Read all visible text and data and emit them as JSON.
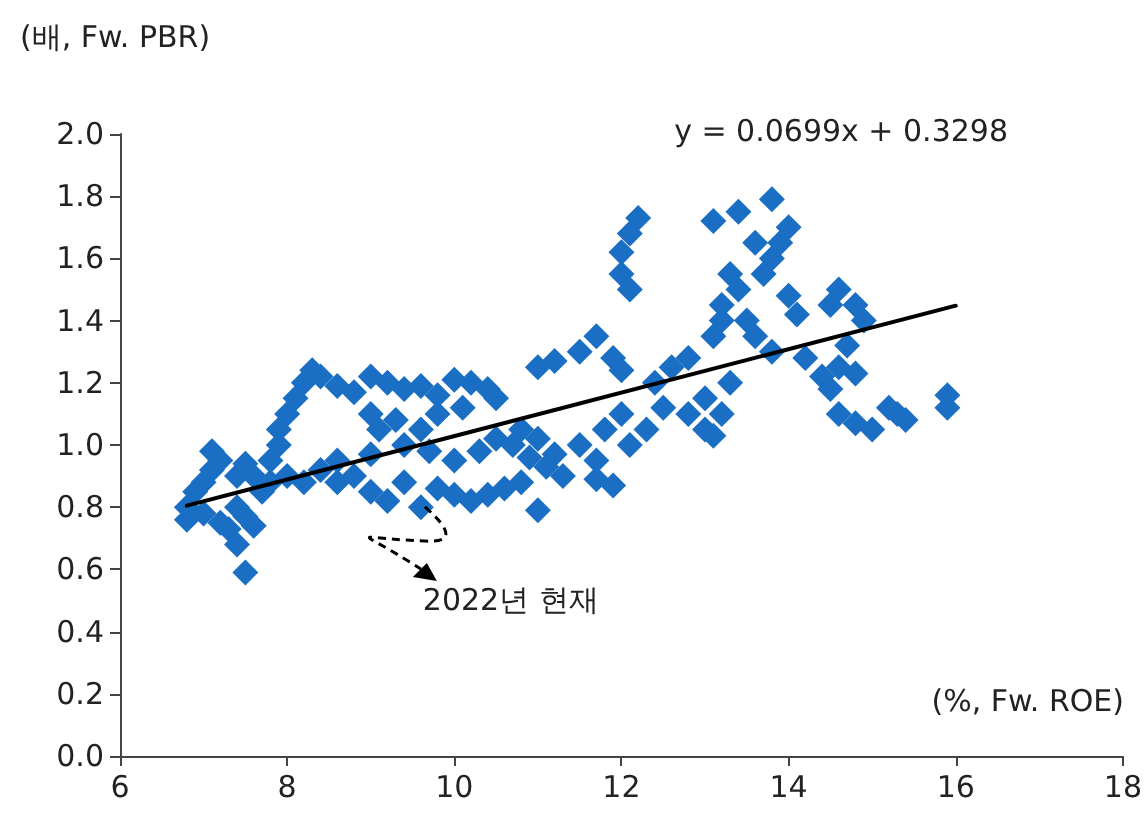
{
  "chart_data": {
    "type": "scatter",
    "xlabel": "(%, Fw. ROE)",
    "ylabel": "(배, Fw. PBR)",
    "annotations": [
      "y = 0.0699x + 0.3298",
      {
        "text": "2022년 현재",
        "x": 9.6,
        "y": 0.82
      }
    ],
    "xlim": [
      6,
      18
    ],
    "xticks": [
      6,
      8,
      10,
      12,
      14,
      16,
      18
    ],
    "ylim": [
      0,
      2
    ],
    "yticks": [
      {
        "value": 0,
        "label": "0.0"
      },
      {
        "value": 0.2,
        "label": "0.2"
      },
      {
        "value": 0.4,
        "label": "0.4"
      },
      {
        "value": 0.6,
        "label": "0.6"
      },
      {
        "value": 0.8,
        "label": "0.8"
      },
      {
        "value": 1,
        "label": "1.0"
      },
      {
        "value": 1.2,
        "label": "1.2"
      },
      {
        "value": 1.4,
        "label": "1.4"
      },
      {
        "value": 1.6,
        "label": "1.6"
      },
      {
        "value": 1.8,
        "label": "1.8"
      },
      {
        "value": 2,
        "label": "2.0"
      }
    ],
    "grid": false,
    "marker": "diamond",
    "series": [
      {
        "color": "#1a6fc4",
        "x": [
          6.8,
          6.8,
          6.9,
          7.0,
          7.1,
          7.1,
          7.2,
          7.0,
          7.2,
          7.3,
          7.4,
          7.5,
          7.4,
          7.5,
          7.6,
          7.4,
          7.5,
          7.6,
          7.7,
          7.8,
          7.8,
          7.9,
          7.9,
          8.0,
          8.1,
          8.2,
          8.3,
          8.4,
          8.6,
          8.8,
          9.0,
          9.2,
          9.4,
          9.6,
          9.8,
          10.0,
          10.2,
          10.4,
          10.5,
          9.0,
          9.1,
          9.3,
          9.6,
          9.8,
          10.1,
          8.0,
          8.2,
          8.4,
          8.6,
          8.8,
          9.0,
          9.2,
          9.4,
          9.6,
          9.8,
          10.0,
          10.2,
          10.4,
          10.6,
          10.8,
          11.0,
          8.6,
          9.0,
          9.4,
          9.7,
          10.0,
          10.3,
          10.5,
          10.7,
          10.9,
          11.1,
          11.3,
          10.8,
          11.0,
          11.2,
          11.0,
          11.2,
          11.5,
          11.7,
          11.5,
          11.7,
          11.7,
          11.9,
          11.8,
          12.0,
          12.1,
          12.3,
          11.9,
          12.0,
          12.0,
          12.0,
          12.1,
          12.1,
          12.2,
          12.4,
          12.6,
          12.8,
          12.5,
          12.8,
          13.0,
          13.0,
          13.1,
          13.2,
          13.3,
          13.1,
          13.2,
          13.3,
          13.2,
          13.4,
          13.5,
          13.6,
          13.1,
          13.4,
          13.6,
          13.8,
          13.8,
          14.0,
          13.9,
          13.7,
          13.8,
          14.0,
          14.1,
          14.2,
          14.4,
          14.5,
          14.6,
          14.8,
          14.9,
          14.7,
          14.6,
          14.8,
          14.5,
          14.6,
          14.8,
          15.0,
          15.2,
          15.4,
          15.3,
          15.9,
          15.9
        ],
        "values": [
          0.8,
          0.76,
          0.85,
          0.88,
          0.92,
          0.98,
          0.95,
          0.78,
          0.75,
          0.73,
          0.68,
          0.59,
          0.8,
          0.77,
          0.74,
          0.9,
          0.94,
          0.9,
          0.85,
          0.88,
          0.95,
          1.0,
          1.05,
          1.1,
          1.15,
          1.2,
          1.24,
          1.22,
          1.19,
          1.17,
          1.22,
          1.2,
          1.18,
          1.19,
          1.16,
          1.21,
          1.2,
          1.18,
          1.15,
          1.1,
          1.05,
          1.08,
          1.05,
          1.1,
          1.12,
          0.9,
          0.88,
          0.92,
          0.88,
          0.9,
          0.85,
          0.82,
          0.88,
          0.8,
          0.86,
          0.84,
          0.82,
          0.84,
          0.86,
          0.88,
          0.79,
          0.95,
          0.97,
          1.0,
          0.98,
          0.95,
          0.98,
          1.02,
          1.0,
          0.96,
          0.93,
          0.9,
          1.05,
          1.02,
          0.97,
          1.25,
          1.27,
          1.3,
          1.35,
          1.0,
          0.95,
          0.89,
          0.87,
          1.05,
          1.1,
          1.0,
          1.05,
          1.28,
          1.24,
          1.62,
          1.55,
          1.5,
          1.68,
          1.73,
          1.2,
          1.25,
          1.28,
          1.12,
          1.1,
          1.15,
          1.05,
          1.03,
          1.1,
          1.2,
          1.35,
          1.45,
          1.55,
          1.4,
          1.5,
          1.4,
          1.35,
          1.72,
          1.75,
          1.65,
          1.79,
          1.6,
          1.7,
          1.65,
          1.55,
          1.3,
          1.48,
          1.42,
          1.28,
          1.22,
          1.45,
          1.5,
          1.45,
          1.4,
          1.32,
          1.25,
          1.23,
          1.18,
          1.1,
          1.07,
          1.05,
          1.12,
          1.08,
          1.1,
          1.12,
          1.16
        ]
      },
      {
        "type": "line",
        "color": "#000000",
        "marker": "none",
        "line_style": "solid",
        "x": [
          6.8,
          16
        ],
        "values": [
          0.805,
          1.448
        ]
      }
    ]
  }
}
